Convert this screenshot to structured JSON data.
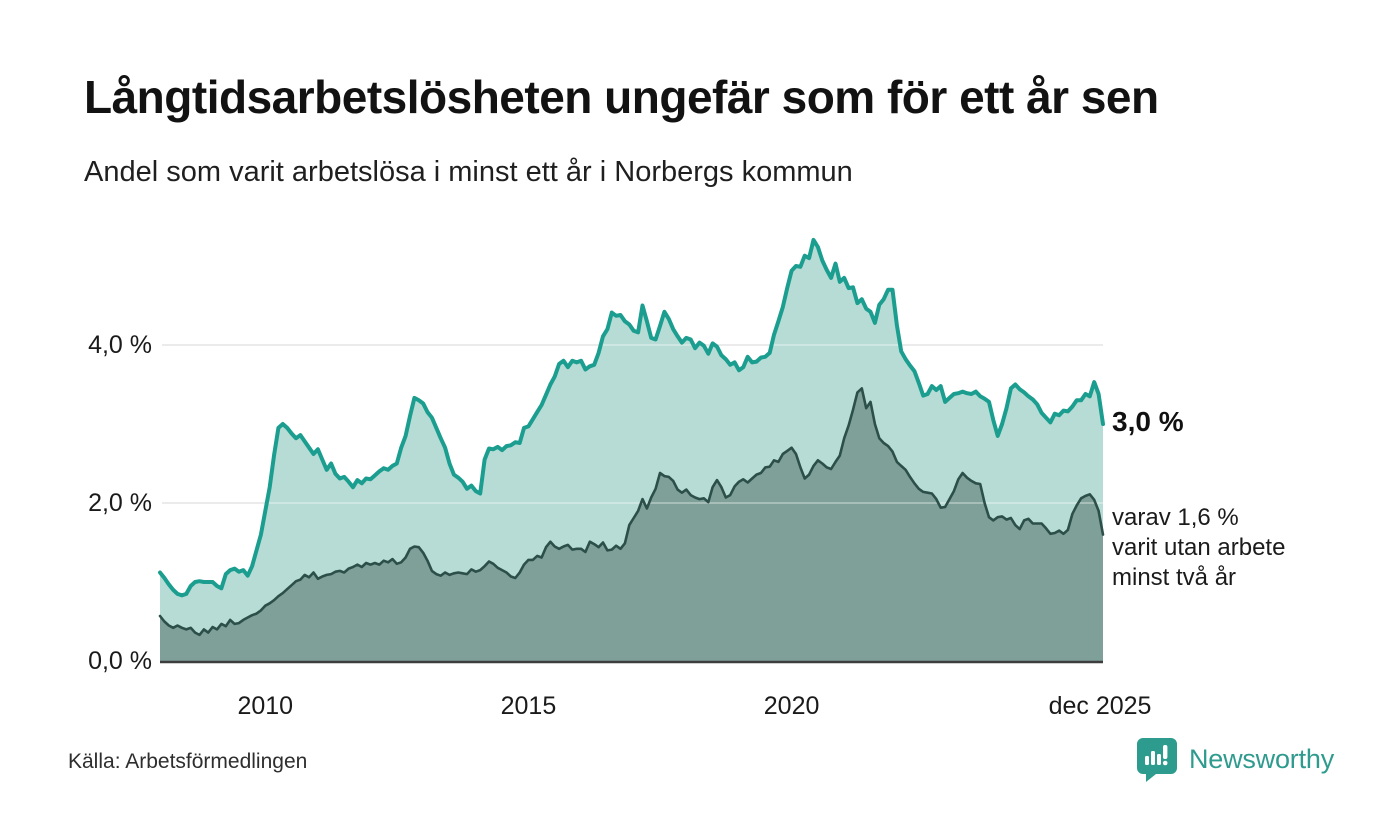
{
  "header": {
    "title": "Långtidsarbetslösheten ungefär som för ett år sen",
    "subtitle": "Andel som varit arbetslösa i minst ett år i Norbergs kommun"
  },
  "footer": {
    "source": "Källa: Arbetsförmedlingen",
    "brand": "Newsworthy"
  },
  "colors": {
    "series1_line": "#1b9e8f",
    "series1_fill": "#b7dcd6",
    "series2_line": "#2d4f4a",
    "series2_fill": "#7fa099",
    "gridline": "#e2e2e2",
    "axis": "#3d3d3d",
    "brand_teal": "#2f9b8e"
  },
  "chart_data": {
    "type": "area",
    "unit": "%",
    "frequency": "monthly",
    "x_start": "2008-01",
    "x_end": "2025-12",
    "ylim": [
      0,
      5.5
    ],
    "grid": true,
    "legend": "none",
    "y_ticks": [
      {
        "value": 0,
        "label": "0,0 %"
      },
      {
        "value": 2,
        "label": "2,0 %"
      },
      {
        "value": 4,
        "label": "4,0 %"
      }
    ],
    "x_ticks": [
      {
        "index": 24,
        "label": "2010"
      },
      {
        "index": 84,
        "label": "2015"
      },
      {
        "index": 144,
        "label": "2020"
      },
      {
        "index": 215,
        "label": "dec 2025"
      }
    ],
    "annotations": {
      "end_value_label": "3,0 %",
      "end_sub_lines": [
        "varav 1,6 %",
        "varit utan arbete",
        "minst två år"
      ]
    },
    "series": [
      {
        "name": "Andel arbetslösa minst ett år",
        "color": "#1b9e8f",
        "fill": "#b7dcd6",
        "values": [
          1.12,
          1.05,
          0.97,
          0.9,
          0.85,
          0.83,
          0.85,
          0.95,
          1.0,
          1.01,
          1.0,
          1.0,
          1.0,
          0.95,
          0.92,
          1.1,
          1.15,
          1.17,
          1.13,
          1.15,
          1.08,
          1.2,
          1.4,
          1.6,
          1.9,
          2.2,
          2.6,
          2.95,
          3.0,
          2.95,
          2.88,
          2.82,
          2.86,
          2.78,
          2.7,
          2.62,
          2.68,
          2.55,
          2.42,
          2.5,
          2.37,
          2.31,
          2.33,
          2.27,
          2.2,
          2.29,
          2.25,
          2.31,
          2.3,
          2.35,
          2.4,
          2.44,
          2.42,
          2.47,
          2.5,
          2.7,
          2.85,
          3.1,
          3.33,
          3.3,
          3.26,
          3.15,
          3.08,
          2.95,
          2.82,
          2.7,
          2.5,
          2.36,
          2.32,
          2.27,
          2.18,
          2.22,
          2.15,
          2.12,
          2.55,
          2.69,
          2.68,
          2.71,
          2.67,
          2.72,
          2.73,
          2.77,
          2.76,
          2.95,
          2.97,
          3.06,
          3.15,
          3.24,
          3.37,
          3.5,
          3.6,
          3.76,
          3.8,
          3.72,
          3.8,
          3.78,
          3.8,
          3.69,
          3.73,
          3.75,
          3.9,
          4.11,
          4.2,
          4.41,
          4.37,
          4.38,
          4.3,
          4.26,
          4.18,
          4.16,
          4.5,
          4.3,
          4.09,
          4.07,
          4.24,
          4.42,
          4.33,
          4.2,
          4.11,
          4.03,
          4.09,
          4.07,
          3.96,
          4.03,
          3.99,
          3.89,
          4.02,
          3.98,
          3.87,
          3.82,
          3.75,
          3.78,
          3.68,
          3.72,
          3.85,
          3.78,
          3.79,
          3.84,
          3.85,
          3.9,
          4.13,
          4.3,
          4.48,
          4.72,
          4.94,
          5.0,
          4.99,
          5.13,
          5.1,
          5.33,
          5.24,
          5.07,
          4.95,
          4.85,
          5.03,
          4.8,
          4.85,
          4.72,
          4.73,
          4.53,
          4.58,
          4.46,
          4.42,
          4.28,
          4.51,
          4.58,
          4.7,
          4.7,
          4.25,
          3.92,
          3.82,
          3.74,
          3.67,
          3.52,
          3.36,
          3.38,
          3.48,
          3.43,
          3.48,
          3.28,
          3.33,
          3.38,
          3.39,
          3.41,
          3.39,
          3.38,
          3.41,
          3.35,
          3.32,
          3.28,
          3.05,
          2.85,
          3.0,
          3.2,
          3.45,
          3.5,
          3.44,
          3.4,
          3.35,
          3.31,
          3.25,
          3.14,
          3.08,
          3.02,
          3.13,
          3.11,
          3.17,
          3.16,
          3.22,
          3.3,
          3.3,
          3.38,
          3.35,
          3.53,
          3.38,
          3.0
        ]
      },
      {
        "name": "Varav arbetslösa minst två år",
        "color": "#2d4f4a",
        "fill": "#7fa099",
        "values": [
          0.57,
          0.5,
          0.45,
          0.42,
          0.45,
          0.42,
          0.4,
          0.42,
          0.36,
          0.33,
          0.4,
          0.36,
          0.43,
          0.4,
          0.47,
          0.44,
          0.52,
          0.47,
          0.48,
          0.52,
          0.55,
          0.58,
          0.6,
          0.64,
          0.7,
          0.73,
          0.77,
          0.82,
          0.86,
          0.91,
          0.96,
          1.01,
          1.03,
          1.09,
          1.06,
          1.12,
          1.04,
          1.07,
          1.09,
          1.1,
          1.13,
          1.14,
          1.12,
          1.17,
          1.19,
          1.22,
          1.19,
          1.24,
          1.22,
          1.24,
          1.22,
          1.27,
          1.25,
          1.29,
          1.23,
          1.25,
          1.31,
          1.42,
          1.45,
          1.44,
          1.37,
          1.27,
          1.14,
          1.1,
          1.08,
          1.12,
          1.09,
          1.11,
          1.12,
          1.11,
          1.1,
          1.16,
          1.13,
          1.15,
          1.2,
          1.26,
          1.23,
          1.18,
          1.15,
          1.12,
          1.07,
          1.05,
          1.12,
          1.22,
          1.28,
          1.28,
          1.33,
          1.31,
          1.44,
          1.51,
          1.45,
          1.42,
          1.45,
          1.47,
          1.41,
          1.42,
          1.42,
          1.38,
          1.51,
          1.48,
          1.44,
          1.5,
          1.4,
          1.41,
          1.46,
          1.42,
          1.49,
          1.72,
          1.81,
          1.9,
          2.05,
          1.93,
          2.07,
          2.18,
          2.38,
          2.34,
          2.33,
          2.28,
          2.17,
          2.13,
          2.17,
          2.1,
          2.07,
          2.05,
          2.06,
          2.01,
          2.2,
          2.29,
          2.2,
          2.07,
          2.1,
          2.21,
          2.27,
          2.3,
          2.26,
          2.31,
          2.36,
          2.38,
          2.45,
          2.46,
          2.54,
          2.52,
          2.62,
          2.66,
          2.7,
          2.62,
          2.45,
          2.31,
          2.36,
          2.47,
          2.54,
          2.5,
          2.45,
          2.43,
          2.52,
          2.6,
          2.82,
          2.98,
          3.18,
          3.4,
          3.45,
          3.2,
          3.28,
          3.0,
          2.82,
          2.76,
          2.72,
          2.65,
          2.52,
          2.47,
          2.42,
          2.33,
          2.25,
          2.18,
          2.14,
          2.13,
          2.12,
          2.05,
          1.94,
          1.95,
          2.05,
          2.15,
          2.3,
          2.38,
          2.32,
          2.28,
          2.25,
          2.24,
          2.0,
          1.82,
          1.78,
          1.82,
          1.83,
          1.79,
          1.81,
          1.72,
          1.67,
          1.78,
          1.8,
          1.74,
          1.74,
          1.74,
          1.68,
          1.61,
          1.62,
          1.65,
          1.61,
          1.66,
          1.86,
          1.97,
          2.06,
          2.09,
          2.11,
          2.04,
          1.9,
          1.6
        ]
      }
    ]
  }
}
